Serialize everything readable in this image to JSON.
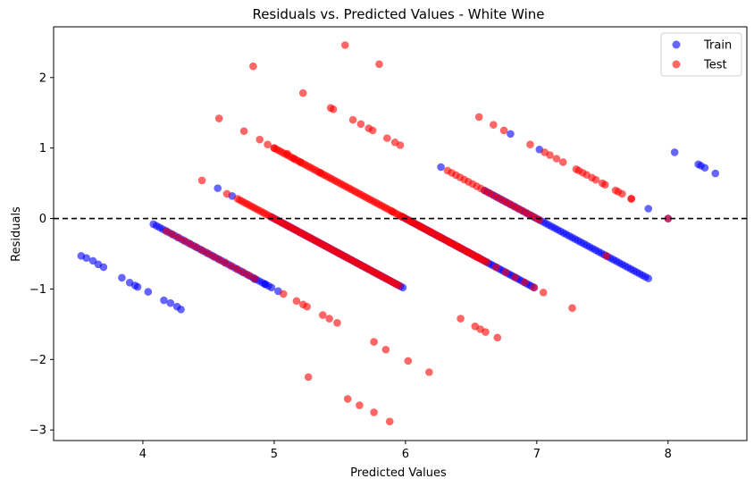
{
  "chart_data": {
    "type": "scatter",
    "title": "Residuals vs. Predicted Values - White Wine",
    "xlabel": "Predicted Values",
    "ylabel": "Residuals",
    "xlim": [
      3.32,
      8.6
    ],
    "ylim": [
      -3.15,
      2.72
    ],
    "xticks": [
      4,
      5,
      6,
      7,
      8
    ],
    "yticks": [
      -3,
      -2,
      -1,
      0,
      1,
      2
    ],
    "grid": false,
    "legend_position": "top-right",
    "reference_line": {
      "y": 0,
      "style": "dashed",
      "color": "#000000"
    },
    "series": [
      {
        "name": "Train",
        "color": "#0000ff",
        "opacity": 0.6,
        "bands": [
          {
            "x_start": 4.08,
            "x_end": 4.98,
            "k": 4,
            "density": 42
          },
          {
            "x_start": 4.98,
            "x_end": 5.98,
            "k": 5,
            "density": 52
          },
          {
            "x_start": 5.98,
            "x_end": 6.98,
            "k": 6,
            "density": 52
          },
          {
            "x_start": 6.6,
            "x_end": 7.85,
            "k": 7,
            "density": 45
          }
        ],
        "points": [
          [
            3.53,
            -0.53
          ],
          [
            3.57,
            -0.56
          ],
          [
            3.62,
            -0.6
          ],
          [
            3.66,
            -0.65
          ],
          [
            3.7,
            -0.69
          ],
          [
            3.84,
            -0.84
          ],
          [
            3.9,
            -0.91
          ],
          [
            3.94,
            -0.95
          ],
          [
            3.96,
            -0.97
          ],
          [
            4.04,
            -1.04
          ],
          [
            4.16,
            -1.16
          ],
          [
            4.21,
            -1.2
          ],
          [
            4.26,
            -1.25
          ],
          [
            4.29,
            -1.29
          ],
          [
            4.57,
            0.43
          ],
          [
            4.68,
            0.32
          ],
          [
            4.85,
            -0.86
          ],
          [
            4.93,
            -0.93
          ],
          [
            5.03,
            -1.03
          ],
          [
            6.27,
            0.73
          ],
          [
            6.8,
            1.2
          ],
          [
            7.02,
            0.98
          ],
          [
            7.85,
            0.14
          ],
          [
            8.0,
            0.0
          ],
          [
            8.05,
            0.94
          ],
          [
            8.23,
            0.77
          ],
          [
            8.25,
            0.75
          ],
          [
            8.28,
            0.72
          ],
          [
            8.36,
            0.64
          ]
        ]
      },
      {
        "name": "Test",
        "color": "#ff0000",
        "opacity": 0.6,
        "bands": [
          {
            "x_start": 4.18,
            "x_end": 4.85,
            "k": 4,
            "density": 22
          },
          {
            "x_start": 4.72,
            "x_end": 5.95,
            "k": 5,
            "density": 55
          },
          {
            "x_start": 5.0,
            "x_end": 6.6,
            "k": 6,
            "density": 55
          },
          {
            "x_start": 5.9,
            "x_end": 7.05,
            "k": 6,
            "density": 14
          },
          {
            "x_start": 6.32,
            "x_end": 7.02,
            "k": 7,
            "density": 32
          },
          {
            "x_start": 7.32,
            "x_end": 7.72,
            "k": 8,
            "density": 9
          }
        ],
        "points": [
          [
            4.45,
            0.54
          ],
          [
            4.58,
            1.42
          ],
          [
            4.64,
            0.35
          ],
          [
            4.77,
            1.24
          ],
          [
            4.84,
            2.16
          ],
          [
            4.89,
            1.12
          ],
          [
            4.95,
            1.05
          ],
          [
            5.0,
            1.0
          ],
          [
            5.1,
            0.92
          ],
          [
            5.15,
            0.85
          ],
          [
            5.2,
            0.8
          ],
          [
            5.22,
            1.78
          ],
          [
            5.26,
            -2.25
          ],
          [
            5.35,
            0.65
          ],
          [
            5.43,
            1.57
          ],
          [
            5.45,
            1.55
          ],
          [
            5.54,
            2.46
          ],
          [
            5.6,
            1.4
          ],
          [
            5.66,
            1.34
          ],
          [
            5.72,
            1.28
          ],
          [
            5.75,
            1.25
          ],
          [
            5.8,
            2.19
          ],
          [
            5.86,
            1.14
          ],
          [
            5.92,
            1.08
          ],
          [
            5.96,
            1.04
          ],
          [
            5.07,
            -1.07
          ],
          [
            5.17,
            -1.17
          ],
          [
            5.22,
            -1.22
          ],
          [
            5.25,
            -1.25
          ],
          [
            5.37,
            -1.37
          ],
          [
            5.42,
            -1.42
          ],
          [
            5.48,
            -1.48
          ],
          [
            5.56,
            -2.56
          ],
          [
            5.65,
            -2.65
          ],
          [
            5.76,
            -1.75
          ],
          [
            5.76,
            -2.75
          ],
          [
            5.85,
            -1.86
          ],
          [
            5.88,
            -2.88
          ],
          [
            6.02,
            -2.02
          ],
          [
            6.18,
            -2.18
          ],
          [
            6.42,
            -1.42
          ],
          [
            6.53,
            -1.53
          ],
          [
            6.57,
            -1.57
          ],
          [
            6.61,
            -1.61
          ],
          [
            6.7,
            -1.69
          ],
          [
            6.56,
            1.44
          ],
          [
            6.67,
            1.33
          ],
          [
            6.75,
            1.25
          ],
          [
            6.95,
            1.05
          ],
          [
            7.06,
            0.94
          ],
          [
            7.1,
            0.9
          ],
          [
            7.15,
            0.85
          ],
          [
            7.2,
            0.8
          ],
          [
            7.27,
            -1.27
          ],
          [
            7.3,
            0.7
          ],
          [
            7.35,
            0.65
          ],
          [
            7.38,
            0.62
          ],
          [
            7.45,
            0.55
          ],
          [
            7.5,
            0.5
          ],
          [
            7.53,
            -0.53
          ],
          [
            7.6,
            0.4
          ],
          [
            7.65,
            0.35
          ],
          [
            7.72,
            0.28
          ],
          [
            8.0,
            0.0
          ]
        ]
      }
    ]
  }
}
